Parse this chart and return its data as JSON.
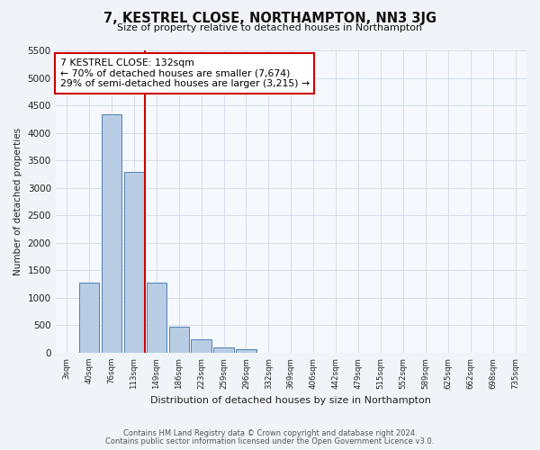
{
  "title": "7, KESTREL CLOSE, NORTHAMPTON, NN3 3JG",
  "subtitle": "Size of property relative to detached houses in Northampton",
  "xlabel": "Distribution of detached houses by size in Northampton",
  "ylabel": "Number of detached properties",
  "categories": [
    "3sqm",
    "40sqm",
    "76sqm",
    "113sqm",
    "149sqm",
    "186sqm",
    "223sqm",
    "259sqm",
    "296sqm",
    "332sqm",
    "369sqm",
    "406sqm",
    "442sqm",
    "479sqm",
    "515sqm",
    "552sqm",
    "589sqm",
    "625sqm",
    "662sqm",
    "698sqm",
    "735sqm"
  ],
  "values": [
    0,
    1270,
    4350,
    3300,
    1270,
    480,
    240,
    90,
    60,
    0,
    0,
    0,
    0,
    0,
    0,
    0,
    0,
    0,
    0,
    0,
    0
  ],
  "bar_color": "#b8cce4",
  "bar_edge_color": "#5080b0",
  "vline_color": "#cc0000",
  "vline_pos": 3.5,
  "annotation_title": "7 KESTREL CLOSE: 132sqm",
  "annotation_line1": "← 70% of detached houses are smaller (7,674)",
  "annotation_line2": "29% of semi-detached houses are larger (3,215) →",
  "annotation_box_edgecolor": "#cc0000",
  "ylim": [
    0,
    5500
  ],
  "yticks": [
    0,
    500,
    1000,
    1500,
    2000,
    2500,
    3000,
    3500,
    4000,
    4500,
    5000,
    5500
  ],
  "footnote1": "Contains HM Land Registry data © Crown copyright and database right 2024.",
  "footnote2": "Contains public sector information licensed under the Open Government Licence v3.0.",
  "fig_bg_color": "#f0f4f8",
  "plot_bg_color": "#f5f8fc"
}
